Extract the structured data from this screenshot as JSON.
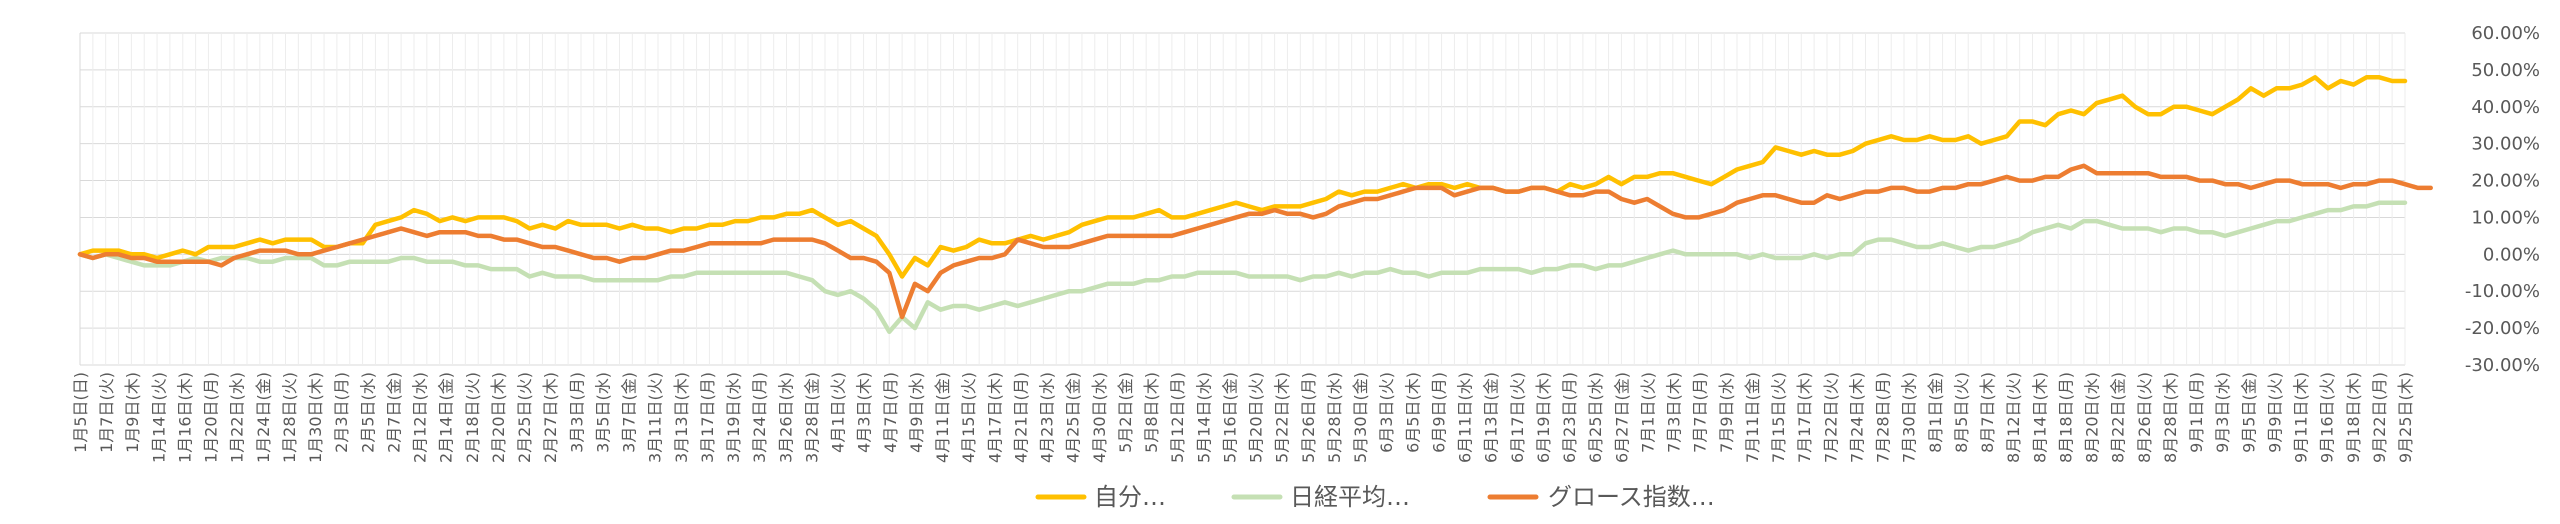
{
  "chart_data": {
    "type": "line",
    "title": "",
    "xlabel": "",
    "ylabel": "",
    "ylim": [
      -30,
      60
    ],
    "y_ticks": [
      60,
      50,
      40,
      30,
      20,
      10,
      0,
      -10,
      -20,
      -30
    ],
    "y_tick_labels": [
      "60.00%",
      "50.00%",
      "40.00%",
      "30.00%",
      "20.00%",
      "10.00%",
      "0.00%",
      "-10.00%",
      "-20.00%",
      "-30.00%"
    ],
    "grid": true,
    "legend_position": "bottom",
    "x_tick_labels": [
      "1月5日(日)",
      "1月7日(火)",
      "1月9日(木)",
      "1月14日(火)",
      "1月16日(木)",
      "1月20日(月)",
      "1月22日(水)",
      "1月24日(金)",
      "1月28日(火)",
      "1月30日(木)",
      "2月3日(月)",
      "2月5日(水)",
      "2月7日(金)",
      "2月12日(水)",
      "2月14日(金)",
      "2月18日(火)",
      "2月20日(木)",
      "2月25日(火)",
      "2月27日(木)",
      "3月3日(月)",
      "3月5日(水)",
      "3月7日(金)",
      "3月11日(火)",
      "3月13日(木)",
      "3月17日(月)",
      "3月19日(水)",
      "3月24日(月)",
      "3月26日(水)",
      "3月28日(金)",
      "4月1日(火)",
      "4月3日(木)",
      "4月7日(月)",
      "4月9日(水)",
      "4月11日(金)",
      "4月15日(火)",
      "4月17日(木)",
      "4月21日(月)",
      "4月23日(水)",
      "4月25日(金)",
      "4月30日(水)",
      "5月2日(金)",
      "5月8日(木)",
      "5月12日(月)",
      "5月14日(水)",
      "5月16日(金)",
      "5月20日(火)",
      "5月22日(木)",
      "5月26日(月)",
      "5月28日(水)",
      "5月30日(金)",
      "6月3日(火)",
      "6月5日(木)",
      "6月9日(月)",
      "6月11日(水)",
      "6月13日(金)",
      "6月17日(火)",
      "6月19日(木)",
      "6月23日(月)",
      "6月25日(水)",
      "6月27日(金)",
      "7月1日(火)",
      "7月3日(木)",
      "7月7日(月)",
      "7月9日(水)",
      "7月11日(金)",
      "7月15日(火)",
      "7月17日(木)",
      "7月22日(火)",
      "7月24日(木)",
      "7月28日(月)",
      "7月30日(水)",
      "8月1日(金)",
      "8月5日(火)",
      "8月7日(木)",
      "8月12日(火)",
      "8月14日(木)",
      "8月18日(月)",
      "8月20日(水)",
      "8月22日(金)",
      "8月26日(火)",
      "8月28日(木)",
      "9月1日(月)",
      "9月3日(水)",
      "9月5日(金)",
      "9月9日(火)",
      "9月11日(木)",
      "9月16日(火)",
      "9月18日(木)",
      "9月22日(月)",
      "9月25日(木)"
    ],
    "series": [
      {
        "name": "自分…",
        "color": "#FFC000",
        "values": [
          0,
          1,
          1,
          1,
          0,
          0,
          -1,
          0,
          1,
          0,
          2,
          2,
          2,
          3,
          4,
          3,
          4,
          4,
          4,
          2,
          2,
          3,
          3,
          8,
          9,
          10,
          12,
          11,
          9,
          10,
          9,
          10,
          10,
          10,
          9,
          7,
          8,
          7,
          9,
          8,
          8,
          8,
          7,
          8,
          7,
          7,
          6,
          7,
          7,
          8,
          8,
          9,
          9,
          10,
          10,
          11,
          11,
          12,
          10,
          8,
          9,
          7,
          5,
          0,
          -6,
          -1,
          -3,
          2,
          1,
          2,
          4,
          3,
          3,
          4,
          5,
          4,
          5,
          6,
          8,
          9,
          10,
          10,
          10,
          11,
          12,
          10,
          10,
          11,
          12,
          13,
          14,
          13,
          12,
          13,
          13,
          13,
          14,
          15,
          17,
          16,
          17,
          17,
          18,
          19,
          18,
          19,
          19,
          18,
          19,
          18,
          18,
          17,
          17,
          18,
          18,
          17,
          19,
          18,
          19,
          21,
          19,
          21,
          21,
          22,
          22,
          21,
          20,
          19,
          21,
          23,
          24,
          25,
          29,
          28,
          27,
          28,
          27,
          27,
          28,
          30,
          31,
          32,
          31,
          31,
          32,
          31,
          31,
          32,
          30,
          31,
          32,
          36,
          36,
          35,
          38,
          39,
          38,
          41,
          42,
          43,
          40,
          38,
          38,
          40,
          40,
          39,
          38,
          40,
          42,
          45,
          43,
          45,
          45,
          46,
          48,
          45,
          47,
          46,
          48,
          48,
          47,
          47
        ],
        "values_note": ""
      },
      {
        "name": "日経平均…",
        "color": "#C5E0B4",
        "values": [
          0,
          -1,
          0,
          -1,
          -2,
          -3,
          -3,
          -3,
          -2,
          -1,
          -2,
          -1,
          -1,
          -1,
          -2,
          -2,
          -1,
          -1,
          -1,
          -3,
          -3,
          -2,
          -2,
          -2,
          -2,
          -1,
          -1,
          -2,
          -2,
          -2,
          -3,
          -3,
          -4,
          -4,
          -4,
          -6,
          -5,
          -6,
          -6,
          -6,
          -7,
          -7,
          -7,
          -7,
          -7,
          -7,
          -6,
          -6,
          -5,
          -5,
          -5,
          -5,
          -5,
          -5,
          -5,
          -5,
          -6,
          -7,
          -10,
          -11,
          -10,
          -12,
          -15,
          -21,
          -17,
          -20,
          -13,
          -15,
          -14,
          -14,
          -15,
          -14,
          -13,
          -14,
          -13,
          -12,
          -11,
          -10,
          -10,
          -9,
          -8,
          -8,
          -8,
          -7,
          -7,
          -6,
          -6,
          -5,
          -5,
          -5,
          -5,
          -6,
          -6,
          -6,
          -6,
          -7,
          -6,
          -6,
          -5,
          -6,
          -5,
          -5,
          -4,
          -5,
          -5,
          -6,
          -5,
          -5,
          -5,
          -4,
          -4,
          -4,
          -4,
          -5,
          -4,
          -4,
          -3,
          -3,
          -4,
          -3,
          -3,
          -2,
          -1,
          0,
          1,
          0,
          0,
          0,
          0,
          0,
          -1,
          0,
          -1,
          -1,
          -1,
          0,
          -1,
          0,
          0,
          3,
          4,
          4,
          3,
          2,
          2,
          3,
          2,
          1,
          2,
          2,
          3,
          4,
          6,
          7,
          8,
          7,
          9,
          9,
          8,
          7,
          7,
          7,
          6,
          7,
          7,
          6,
          6,
          5,
          6,
          7,
          8,
          9,
          9,
          10,
          11,
          12,
          12,
          13,
          13,
          14,
          14,
          14
        ],
        "values_note": ""
      },
      {
        "name": "グロース指数…",
        "color": "#ED7D31",
        "values": [
          0,
          -1,
          0,
          0,
          -1,
          -1,
          -2,
          -2,
          -2,
          -2,
          -2,
          -3,
          -1,
          0,
          1,
          1,
          1,
          0,
          0,
          1,
          2,
          3,
          4,
          5,
          6,
          7,
          6,
          5,
          6,
          6,
          6,
          5,
          5,
          4,
          4,
          3,
          2,
          2,
          1,
          0,
          -1,
          -1,
          -2,
          -1,
          -1,
          0,
          1,
          1,
          2,
          3,
          3,
          3,
          3,
          3,
          4,
          4,
          4,
          4,
          3,
          1,
          -1,
          -1,
          -2,
          -5,
          -17,
          -8,
          -10,
          -5,
          -3,
          -2,
          -1,
          -1,
          0,
          4,
          3,
          2,
          2,
          2,
          3,
          4,
          5,
          5,
          5,
          5,
          5,
          5,
          6,
          7,
          8,
          9,
          10,
          11,
          11,
          12,
          11,
          11,
          10,
          11,
          13,
          14,
          15,
          15,
          16,
          17,
          18,
          18,
          18,
          16,
          17,
          18,
          18,
          17,
          17,
          18,
          18,
          17,
          16,
          16,
          17,
          17,
          15,
          14,
          15,
          13,
          11,
          10,
          10,
          11,
          12,
          14,
          15,
          16,
          16,
          15,
          14,
          14,
          16,
          15,
          16,
          17,
          17,
          18,
          18,
          17,
          17,
          18,
          18,
          19,
          19,
          20,
          21,
          20,
          20,
          21,
          21,
          23,
          24,
          22,
          22,
          22,
          22,
          22,
          21,
          21,
          21,
          20,
          20,
          19,
          19,
          18,
          19,
          20,
          20,
          19,
          19,
          19,
          18,
          19,
          19,
          20,
          20,
          19,
          18,
          18
        ]
      }
    ]
  }
}
